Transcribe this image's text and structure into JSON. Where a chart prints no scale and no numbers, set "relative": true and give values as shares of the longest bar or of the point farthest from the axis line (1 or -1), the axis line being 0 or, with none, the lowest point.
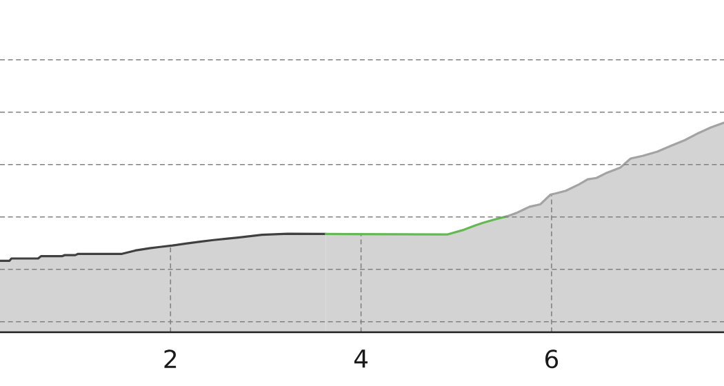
{
  "chart_data": {
    "type": "area",
    "relative": true,
    "xlim": [
      0.21,
      7.81
    ],
    "xticks": [
      2,
      4,
      6
    ],
    "grid": true,
    "tick_labels": "x",
    "series": [
      {
        "color": "#404040",
        "x": [
          0.21,
          0.31,
          0.33,
          0.61,
          0.64,
          0.86,
          0.89,
          1.0,
          1.03,
          1.49,
          1.63,
          1.78,
          1.89,
          2.02,
          2.16,
          2.31,
          2.45,
          2.6,
          2.71,
          2.96,
          3.23,
          3.63
        ],
        "values": [
          0.341,
          0.341,
          0.352,
          0.352,
          0.363,
          0.363,
          0.368,
          0.368,
          0.374,
          0.374,
          0.39,
          0.401,
          0.407,
          0.414,
          0.423,
          0.432,
          0.44,
          0.447,
          0.452,
          0.465,
          0.47,
          0.469
        ]
      },
      {
        "color": "#66b855",
        "x": [
          3.63,
          4.91,
          5.08,
          5.2,
          5.28,
          5.4,
          5.53
        ],
        "values": [
          0.469,
          0.467,
          0.489,
          0.51,
          0.522,
          0.538,
          0.553
        ]
      },
      {
        "color": "#a3a3a3",
        "x": [
          5.53,
          5.64,
          5.77,
          5.88,
          5.99,
          6.04,
          6.15,
          6.29,
          6.38,
          6.47,
          6.58,
          6.72,
          6.83,
          6.96,
          7.11,
          7.25,
          7.4,
          7.54,
          7.67,
          7.81
        ],
        "values": [
          0.553,
          0.571,
          0.599,
          0.61,
          0.657,
          0.662,
          0.675,
          0.706,
          0.73,
          0.736,
          0.761,
          0.785,
          0.829,
          0.842,
          0.862,
          0.889,
          0.917,
          0.95,
          0.977,
          1.0
        ]
      }
    ]
  }
}
